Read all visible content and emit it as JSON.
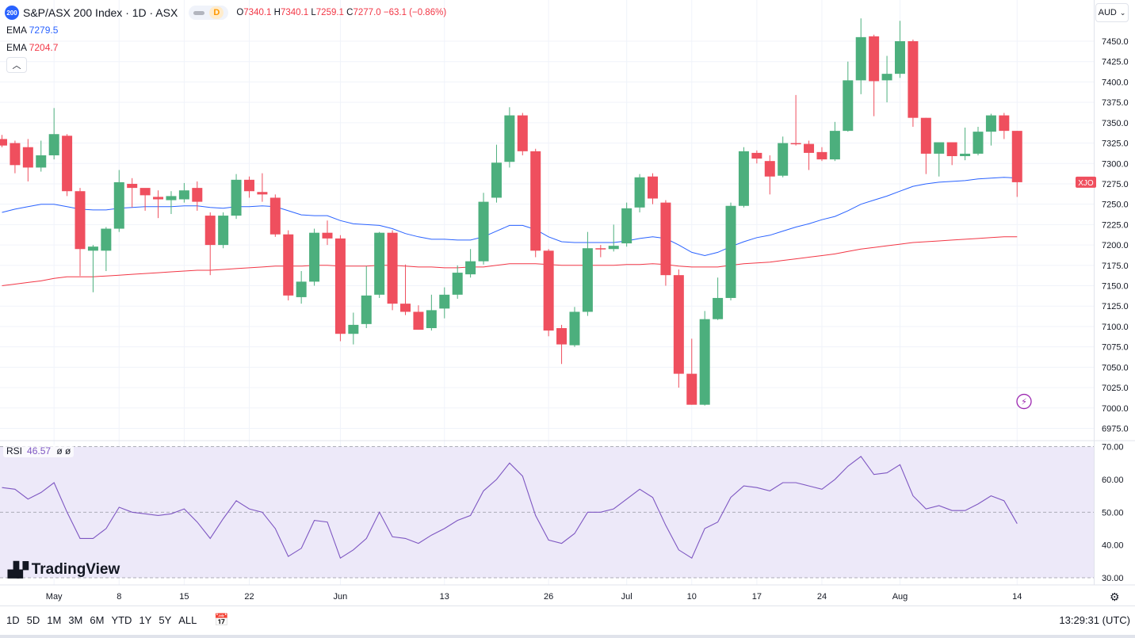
{
  "header": {
    "badge": "200",
    "title": "S&P/ASX 200 Index · 1D · ASX",
    "interval_badge": "D",
    "ohlc": {
      "o_label": "O",
      "o": "7340.1",
      "h_label": "H",
      "h": "7340.1",
      "l_label": "L",
      "l": "7259.1",
      "c_label": "C",
      "c": "7277.0",
      "change": "−63.1 (−0.86%)"
    }
  },
  "ema_fast": {
    "label": "EMA",
    "value": "7279.5",
    "color": "#2962ff"
  },
  "ema_slow": {
    "label": "EMA",
    "value": "7204.7",
    "color": "#f23645"
  },
  "currency": "AUD",
  "symbol_tag": "XJO",
  "rsi_legend": {
    "label": "RSI",
    "value": "46.57",
    "extra": "ø ø"
  },
  "logo": "TradingView",
  "range_buttons": [
    "1D",
    "5D",
    "1M",
    "3M",
    "6M",
    "YTD",
    "1Y",
    "5Y",
    "ALL"
  ],
  "clock": "13:29:31 (UTC)",
  "colors": {
    "up": "#4caf7d",
    "down": "#ef4f5e",
    "ema_fast": "#2962ff",
    "ema_slow": "#f23645",
    "rsi": "#7e57c2",
    "rsi_band": "#ede9f9"
  },
  "chart_data": {
    "type": "candlestick",
    "y_ticks": [
      6975,
      7000,
      7025,
      7050,
      7075,
      7100,
      7125,
      7150,
      7175,
      7200,
      7225,
      7250,
      7275,
      7300,
      7325,
      7350,
      7375,
      7400,
      7425,
      7450
    ],
    "ylim": [
      6965,
      7475
    ],
    "x_ticks": [
      "May",
      "8",
      "15",
      "22",
      "Jun",
      "13",
      "26",
      "Jul",
      "10",
      "17",
      "24",
      "Aug",
      "14"
    ],
    "x_tick_index": [
      4,
      9,
      14,
      19,
      26,
      34,
      42,
      48,
      53,
      58,
      63,
      69,
      78
    ],
    "candles": [
      {
        "o": 7330,
        "h": 7335,
        "l": 7320,
        "c": 7322
      },
      {
        "o": 7325,
        "h": 7328,
        "l": 7288,
        "c": 7298
      },
      {
        "o": 7320,
        "h": 7330,
        "l": 7278,
        "c": 7295
      },
      {
        "o": 7295,
        "h": 7328,
        "l": 7290,
        "c": 7310
      },
      {
        "o": 7310,
        "h": 7368,
        "l": 7305,
        "c": 7336
      },
      {
        "o": 7334,
        "h": 7336,
        "l": 7260,
        "c": 7266
      },
      {
        "o": 7266,
        "h": 7270,
        "l": 7162,
        "c": 7195
      },
      {
        "o": 7193,
        "h": 7200,
        "l": 7142,
        "c": 7198
      },
      {
        "o": 7193,
        "h": 7222,
        "l": 7168,
        "c": 7220
      },
      {
        "o": 7220,
        "h": 7292,
        "l": 7216,
        "c": 7277
      },
      {
        "o": 7275,
        "h": 7282,
        "l": 7246,
        "c": 7270
      },
      {
        "o": 7270,
        "h": 7268,
        "l": 7242,
        "c": 7261
      },
      {
        "o": 7259,
        "h": 7267,
        "l": 7233,
        "c": 7256
      },
      {
        "o": 7255,
        "h": 7266,
        "l": 7238,
        "c": 7260
      },
      {
        "o": 7256,
        "h": 7276,
        "l": 7252,
        "c": 7267
      },
      {
        "o": 7270,
        "h": 7278,
        "l": 7242,
        "c": 7253
      },
      {
        "o": 7236,
        "h": 7240,
        "l": 7163,
        "c": 7200
      },
      {
        "o": 7200,
        "h": 7240,
        "l": 7196,
        "c": 7236
      },
      {
        "o": 7236,
        "h": 7287,
        "l": 7232,
        "c": 7280
      },
      {
        "o": 7280,
        "h": 7284,
        "l": 7258,
        "c": 7266
      },
      {
        "o": 7265,
        "h": 7288,
        "l": 7253,
        "c": 7262
      },
      {
        "o": 7258,
        "h": 7262,
        "l": 7210,
        "c": 7213
      },
      {
        "o": 7213,
        "h": 7218,
        "l": 7132,
        "c": 7138
      },
      {
        "o": 7136,
        "h": 7168,
        "l": 7128,
        "c": 7155
      },
      {
        "o": 7155,
        "h": 7220,
        "l": 7150,
        "c": 7215
      },
      {
        "o": 7215,
        "h": 7230,
        "l": 7200,
        "c": 7208
      },
      {
        "o": 7208,
        "h": 7212,
        "l": 7082,
        "c": 7091
      },
      {
        "o": 7091,
        "h": 7117,
        "l": 7078,
        "c": 7102
      },
      {
        "o": 7103,
        "h": 7174,
        "l": 7098,
        "c": 7138
      },
      {
        "o": 7139,
        "h": 7216,
        "l": 7135,
        "c": 7215
      },
      {
        "o": 7215,
        "h": 7218,
        "l": 7120,
        "c": 7128
      },
      {
        "o": 7128,
        "h": 7176,
        "l": 7114,
        "c": 7118
      },
      {
        "o": 7118,
        "h": 7126,
        "l": 7096,
        "c": 7096
      },
      {
        "o": 7098,
        "h": 7139,
        "l": 7095,
        "c": 7120
      },
      {
        "o": 7122,
        "h": 7148,
        "l": 7110,
        "c": 7139
      },
      {
        "o": 7139,
        "h": 7175,
        "l": 7134,
        "c": 7166
      },
      {
        "o": 7164,
        "h": 7195,
        "l": 7160,
        "c": 7180
      },
      {
        "o": 7180,
        "h": 7264,
        "l": 7176,
        "c": 7253
      },
      {
        "o": 7258,
        "h": 7323,
        "l": 7252,
        "c": 7301
      },
      {
        "o": 7302,
        "h": 7369,
        "l": 7295,
        "c": 7359
      },
      {
        "o": 7359,
        "h": 7362,
        "l": 7310,
        "c": 7315
      },
      {
        "o": 7315,
        "h": 7318,
        "l": 7185,
        "c": 7193
      },
      {
        "o": 7193,
        "h": 7195,
        "l": 7088,
        "c": 7095
      },
      {
        "o": 7098,
        "h": 7102,
        "l": 7054,
        "c": 7078
      },
      {
        "o": 7077,
        "h": 7124,
        "l": 7075,
        "c": 7118
      },
      {
        "o": 7118,
        "h": 7216,
        "l": 7113,
        "c": 7196
      },
      {
        "o": 7196,
        "h": 7200,
        "l": 7185,
        "c": 7195
      },
      {
        "o": 7195,
        "h": 7225,
        "l": 7192,
        "c": 7199
      },
      {
        "o": 7202,
        "h": 7252,
        "l": 7198,
        "c": 7245
      },
      {
        "o": 7246,
        "h": 7287,
        "l": 7240,
        "c": 7283
      },
      {
        "o": 7284,
        "h": 7288,
        "l": 7250,
        "c": 7257
      },
      {
        "o": 7252,
        "h": 7255,
        "l": 7150,
        "c": 7163
      },
      {
        "o": 7163,
        "h": 7170,
        "l": 7025,
        "c": 7042
      },
      {
        "o": 7042,
        "h": 7085,
        "l": 7004,
        "c": 7004
      },
      {
        "o": 7004,
        "h": 7119,
        "l": 7003,
        "c": 7109
      },
      {
        "o": 7109,
        "h": 7160,
        "l": 7108,
        "c": 7135
      },
      {
        "o": 7135,
        "h": 7252,
        "l": 7132,
        "c": 7248
      },
      {
        "o": 7248,
        "h": 7320,
        "l": 7246,
        "c": 7315
      },
      {
        "o": 7313,
        "h": 7316,
        "l": 7300,
        "c": 7306
      },
      {
        "o": 7303,
        "h": 7310,
        "l": 7262,
        "c": 7284
      },
      {
        "o": 7285,
        "h": 7333,
        "l": 7283,
        "c": 7325
      },
      {
        "o": 7325,
        "h": 7384,
        "l": 7322,
        "c": 7324
      },
      {
        "o": 7324,
        "h": 7328,
        "l": 7292,
        "c": 7313
      },
      {
        "o": 7314,
        "h": 7320,
        "l": 7303,
        "c": 7305
      },
      {
        "o": 7305,
        "h": 7351,
        "l": 7303,
        "c": 7340
      },
      {
        "o": 7340,
        "h": 7425,
        "l": 7339,
        "c": 7402
      },
      {
        "o": 7402,
        "h": 7478,
        "l": 7385,
        "c": 7455
      },
      {
        "o": 7456,
        "h": 7458,
        "l": 7358,
        "c": 7401
      },
      {
        "o": 7402,
        "h": 7432,
        "l": 7375,
        "c": 7410
      },
      {
        "o": 7410,
        "h": 7475,
        "l": 7405,
        "c": 7450
      },
      {
        "o": 7450,
        "h": 7452,
        "l": 7345,
        "c": 7356
      },
      {
        "o": 7356,
        "h": 7356,
        "l": 7287,
        "c": 7312
      },
      {
        "o": 7312,
        "h": 7326,
        "l": 7284,
        "c": 7326
      },
      {
        "o": 7326,
        "h": 7326,
        "l": 7298,
        "c": 7309
      },
      {
        "o": 7309,
        "h": 7344,
        "l": 7304,
        "c": 7312
      },
      {
        "o": 7312,
        "h": 7345,
        "l": 7310,
        "c": 7339
      },
      {
        "o": 7339,
        "h": 7361,
        "l": 7322,
        "c": 7359
      },
      {
        "o": 7359,
        "h": 7362,
        "l": 7330,
        "c": 7340
      },
      {
        "o": 7340,
        "h": 7340,
        "l": 7259,
        "c": 7277
      }
    ],
    "ema_fast": [
      7240,
      7244,
      7247,
      7250,
      7250,
      7247,
      7244,
      7243,
      7243,
      7245,
      7246,
      7247,
      7247,
      7247,
      7248,
      7248,
      7246,
      7245,
      7247,
      7247,
      7248,
      7247,
      7242,
      7237,
      7236,
      7236,
      7230,
      7226,
      7225,
      7224,
      7220,
      7214,
      7210,
      7207,
      7207,
      7206,
      7206,
      7210,
      7217,
      7224,
      7224,
      7219,
      7210,
      7204,
      7203,
      7203,
      7203,
      7203,
      7205,
      7208,
      7210,
      7208,
      7200,
      7191,
      7187,
      7191,
      7198,
      7204,
      7209,
      7212,
      7217,
      7222,
      7226,
      7231,
      7235,
      7242,
      7250,
      7255,
      7260,
      7266,
      7272,
      7275,
      7277,
      7278,
      7279,
      7281,
      7282,
      7283,
      7282
    ],
    "ema_slow": [
      7150,
      7152,
      7154,
      7156,
      7159,
      7161,
      7161,
      7161,
      7162,
      7163,
      7164,
      7165,
      7166,
      7167,
      7168,
      7169,
      7169,
      7170,
      7171,
      7172,
      7173,
      7174,
      7174,
      7174,
      7175,
      7175,
      7174,
      7174,
      7174,
      7175,
      7175,
      7174,
      7173,
      7173,
      7172,
      7172,
      7173,
      7173,
      7175,
      7177,
      7177,
      7177,
      7176,
      7175,
      7175,
      7175,
      7175,
      7175,
      7176,
      7176,
      7177,
      7176,
      7174,
      7173,
      7173,
      7173,
      7175,
      7177,
      7178,
      7179,
      7181,
      7183,
      7185,
      7187,
      7189,
      7192,
      7195,
      7197,
      7199,
      7201,
      7203,
      7204,
      7205,
      7206,
      7207,
      7208,
      7209,
      7210,
      7210
    ],
    "rsi": {
      "ylim": [
        27,
        70
      ],
      "ticks": [
        30,
        40,
        50,
        60,
        70
      ],
      "band": [
        30,
        70
      ],
      "midline": 50,
      "values": [
        57.5,
        57,
        54,
        56,
        59,
        50,
        42,
        42,
        45,
        51.5,
        50,
        49.5,
        49,
        49.5,
        51,
        47,
        42,
        48,
        53.5,
        51,
        50,
        45,
        36.5,
        39,
        47.5,
        47,
        36,
        38.5,
        42,
        50,
        42.5,
        42,
        40.5,
        43,
        45,
        47.5,
        49,
        56.5,
        60,
        65,
        61,
        49,
        41.5,
        40.5,
        43.5,
        50,
        50,
        51,
        54,
        57,
        54.5,
        46,
        38.5,
        36,
        45,
        47,
        54.5,
        58,
        57.5,
        56.5,
        59,
        59,
        58,
        57,
        60,
        64,
        67,
        61.5,
        62,
        64.5,
        55,
        51,
        52,
        50.5,
        50.5,
        52.5,
        55,
        53.5,
        46.5
      ]
    }
  }
}
